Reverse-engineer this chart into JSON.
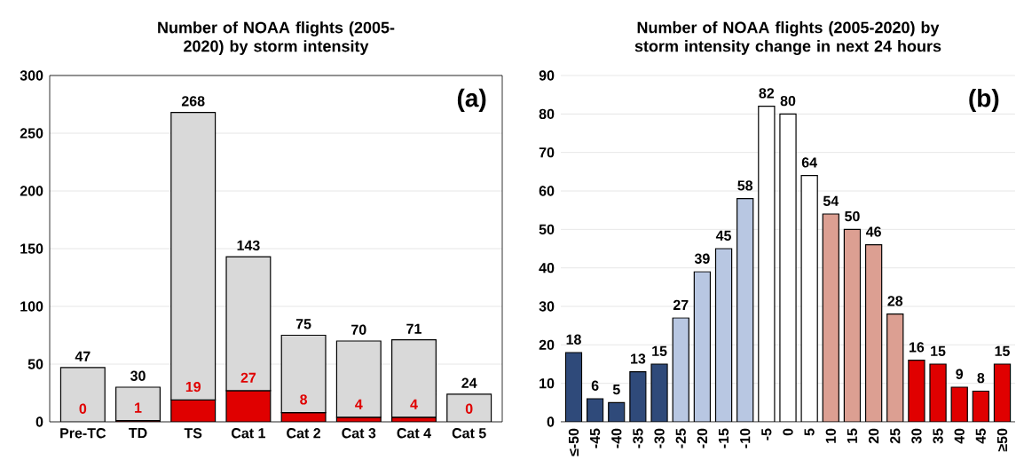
{
  "chart_data": [
    {
      "type": "bar",
      "title": "Number of NOAA flights (2005-2020) by storm intensity",
      "categories": [
        "Pre-TC",
        "TD",
        "TS",
        "Cat 1",
        "Cat 2",
        "Cat 3",
        "Cat 4",
        "Cat 5"
      ],
      "series": [
        {
          "color": "#e00000",
          "values": [
            0,
            1,
            19,
            27,
            8,
            4,
            4,
            0
          ],
          "value_labels": [
            "0",
            "1",
            "19",
            "27",
            "8",
            "4",
            "4",
            "0"
          ]
        },
        {
          "color": "#d9d9d9",
          "values": [
            47,
            29,
            249,
            116,
            67,
            66,
            67,
            24
          ]
        }
      ],
      "stacked": true,
      "totals": [
        "47",
        "30",
        "268",
        "143",
        "75",
        "70",
        "71",
        "24"
      ],
      "ylim": [
        0,
        300
      ],
      "yticks": [
        0,
        50,
        100,
        150,
        200,
        250,
        300
      ],
      "grid": "y",
      "annotations": [
        "(a)"
      ]
    },
    {
      "type": "bar",
      "title": "Number of NOAA flights (2005-2020) by storm intensity change in next 24 hours",
      "categories": [
        "≤-50",
        "-45",
        "-40",
        "-35",
        "-30",
        "-25",
        "-20",
        "-15",
        "-10",
        "-5",
        "0",
        "5",
        "10",
        "15",
        "20",
        "25",
        "30",
        "35",
        "40",
        "45",
        "≥50"
      ],
      "values": [
        18,
        6,
        5,
        13,
        15,
        27,
        39,
        45,
        58,
        82,
        80,
        64,
        54,
        50,
        46,
        28,
        16,
        15,
        9,
        8,
        15
      ],
      "colors": [
        "#2f4a7a",
        "#2f4a7a",
        "#2f4a7a",
        "#2f4a7a",
        "#2f4a7a",
        "#b8c7e2",
        "#b8c7e2",
        "#b8c7e2",
        "#b8c7e2",
        "#ffffff",
        "#ffffff",
        "#ffffff",
        "#dc9f92",
        "#dc9f92",
        "#dc9f92",
        "#dc9f92",
        "#e00000",
        "#e00000",
        "#e00000",
        "#e00000",
        "#e00000"
      ],
      "ylim": [
        0,
        90
      ],
      "yticks": [
        0,
        10,
        20,
        30,
        40,
        50,
        60,
        70,
        80,
        90
      ],
      "grid": "y",
      "data_labels": true,
      "annotations": [
        "(b)"
      ]
    }
  ]
}
